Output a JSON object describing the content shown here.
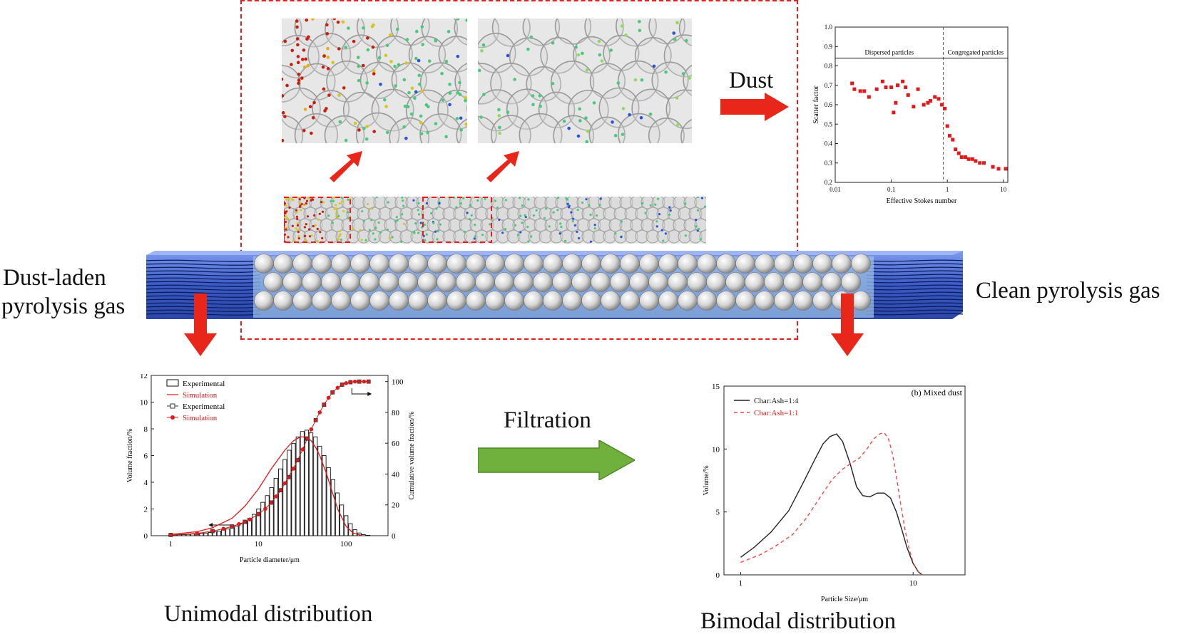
{
  "labels": {
    "inlet": [
      "Dust-laden",
      "pyrolysis gas"
    ],
    "outlet": "Clean pyrolysis gas",
    "dust_arrow": "Dust",
    "filtration_arrow": "Filtration",
    "left_caption": "Unimodal distribution",
    "right_caption": "Bimodal distribution"
  },
  "colors": {
    "red_arrow": "#e8261a",
    "green_arrow": "#6fb13c",
    "dashed_box": "#e81c1c",
    "bed_blue": "#4a6fd0",
    "sphere": "#d8d8d8"
  },
  "chart_data": [
    {
      "id": "scatter-factor",
      "type": "scatter",
      "xlabel": "Effective Stokes number",
      "ylabel": "Scatter factor",
      "xscale": "log",
      "xlim": [
        0.01,
        12
      ],
      "ylim": [
        0.2,
        1.0
      ],
      "xticks": [
        "0.01",
        "0.1",
        "1",
        "10"
      ],
      "yticks": [
        "0.2",
        "0.3",
        "0.4",
        "0.5",
        "0.6",
        "0.7",
        "0.8",
        "0.9",
        "1.0"
      ],
      "divider_x": 0.85,
      "annotations": [
        "Dispersed particles",
        "Congregated particles"
      ],
      "x": [
        0.02,
        0.022,
        0.028,
        0.033,
        0.04,
        0.055,
        0.07,
        0.08,
        0.1,
        0.11,
        0.12,
        0.13,
        0.16,
        0.18,
        0.2,
        0.25,
        0.3,
        0.38,
        0.45,
        0.5,
        0.6,
        0.7,
        0.8,
        0.9,
        1.0,
        1.1,
        1.25,
        1.4,
        1.6,
        1.8,
        2.1,
        2.4,
        2.8,
        3.2,
        3.8,
        4.5,
        6.5,
        8.2,
        11
      ],
      "y": [
        0.71,
        0.68,
        0.67,
        0.67,
        0.64,
        0.68,
        0.72,
        0.69,
        0.69,
        0.56,
        0.61,
        0.7,
        0.72,
        0.69,
        0.65,
        0.59,
        0.68,
        0.6,
        0.61,
        0.62,
        0.64,
        0.63,
        0.6,
        0.58,
        0.49,
        0.44,
        0.42,
        0.37,
        0.35,
        0.33,
        0.33,
        0.32,
        0.32,
        0.31,
        0.3,
        0.3,
        0.28,
        0.27,
        0.27
      ]
    },
    {
      "id": "unimodal",
      "type": "bar",
      "xlabel": "Particle diameter/μm",
      "ylabel": "Volume fraction/%",
      "y2label": "Cumulative volume fraction/%",
      "xscale": "log",
      "xlim": [
        0.6,
        300
      ],
      "ylim": [
        0,
        12
      ],
      "y2lim": [
        0,
        104
      ],
      "xticks": [
        "1",
        "10",
        "100"
      ],
      "yticks": [
        "0",
        "2",
        "4",
        "6",
        "8",
        "10",
        "12"
      ],
      "y2ticks": [
        "0",
        "20",
        "40",
        "60",
        "80",
        "100"
      ],
      "legend": [
        "Experimental",
        "Simulation",
        "Experimental",
        "Simulation"
      ],
      "bars_x": [
        1.0,
        1.12,
        1.26,
        1.41,
        1.58,
        1.78,
        2.0,
        2.24,
        2.51,
        2.82,
        3.16,
        3.55,
        3.98,
        4.47,
        5.01,
        5.62,
        6.31,
        7.08,
        7.94,
        8.91,
        10.0,
        11.2,
        12.6,
        14.1,
        15.8,
        17.8,
        20.0,
        22.4,
        25.1,
        28.2,
        31.6,
        35.5,
        39.8,
        44.7,
        50.1,
        56.2,
        63.1,
        70.8,
        79.4,
        89.1,
        100,
        112,
        126,
        141,
        158,
        178
      ],
      "bars_y": [
        0.05,
        0.06,
        0.07,
        0.08,
        0.1,
        0.12,
        0.14,
        0.17,
        0.2,
        0.24,
        0.3,
        0.35,
        0.42,
        0.5,
        0.6,
        0.72,
        0.88,
        1.06,
        1.3,
        1.6,
        2.0,
        2.5,
        3.0,
        3.6,
        4.3,
        5.0,
        5.7,
        6.4,
        6.9,
        7.4,
        7.8,
        7.9,
        7.7,
        7.4,
        6.7,
        6.0,
        5.1,
        4.2,
        3.2,
        2.3,
        1.5,
        0.9,
        0.45,
        0.2,
        0.08,
        0.03
      ],
      "sim_x": [
        1,
        2,
        3,
        5,
        7,
        10,
        14,
        20,
        25,
        30,
        35,
        40,
        45,
        50,
        60,
        70,
        80,
        100,
        120,
        150
      ],
      "sim_y": [
        0.1,
        0.3,
        0.6,
        1.3,
        2.2,
        3.5,
        5.0,
        6.4,
        7.1,
        7.4,
        7.4,
        7.1,
        6.6,
        6.0,
        4.6,
        3.2,
        2.0,
        0.7,
        0.2,
        0.02
      ],
      "cum_x": [
        1,
        2,
        3,
        4,
        5,
        6,
        7,
        8,
        10,
        12,
        14,
        16,
        18,
        20,
        22,
        25,
        28,
        32,
        36,
        40,
        45,
        50,
        56,
        63,
        70,
        80,
        90,
        100,
        112,
        126,
        141,
        160,
        180
      ],
      "cum_y": [
        0.5,
        1.5,
        3,
        4.5,
        6,
        7.5,
        9,
        10.5,
        14,
        17.5,
        21.5,
        25.5,
        29.5,
        34,
        38,
        43.5,
        49,
        56,
        63,
        69,
        75,
        80,
        85,
        89.5,
        93,
        96,
        98,
        99,
        99.6,
        100,
        100,
        100,
        100
      ]
    },
    {
      "id": "bimodal",
      "type": "line",
      "subtitle": "(b) Mixed dust",
      "xlabel": "Particle Size/μm",
      "ylabel": "Volume/%",
      "xscale": "log",
      "xlim": [
        0.8,
        20
      ],
      "ylim": [
        0,
        15
      ],
      "xticks": [
        "1",
        "10"
      ],
      "yticks": [
        "0",
        "5",
        "10",
        "15"
      ],
      "series": [
        {
          "name": "Char:Ash=1:4",
          "x": [
            1.0,
            1.2,
            1.5,
            1.9,
            2.3,
            2.7,
            3.0,
            3.3,
            3.6,
            3.9,
            4.3,
            4.7,
            5.1,
            5.6,
            6.2,
            6.8,
            7.4,
            8.0,
            8.6,
            9.2,
            10.0,
            10.8,
            11.3
          ],
          "y": [
            1.4,
            2.2,
            3.4,
            5.1,
            7.3,
            9.2,
            10.4,
            11.0,
            11.2,
            10.6,
            8.9,
            7.0,
            6.3,
            6.2,
            6.5,
            6.5,
            6.1,
            5.0,
            3.6,
            2.2,
            0.9,
            0.2,
            0.0
          ]
        },
        {
          "name": "Char:Ash=1:1",
          "x": [
            1.0,
            1.3,
            1.6,
            2.0,
            2.4,
            2.9,
            3.4,
            3.9,
            4.4,
            4.9,
            5.4,
            5.9,
            6.4,
            6.8,
            7.2,
            7.6,
            8.0,
            8.5,
            9.0,
            9.5,
            10.0,
            10.6,
            11.2
          ],
          "y": [
            1.0,
            1.6,
            2.3,
            3.2,
            4.5,
            6.2,
            7.6,
            8.4,
            8.9,
            9.3,
            10.0,
            10.8,
            11.2,
            11.3,
            10.8,
            9.6,
            7.8,
            5.5,
            3.5,
            2.0,
            1.0,
            0.3,
            0.0
          ]
        }
      ]
    }
  ]
}
